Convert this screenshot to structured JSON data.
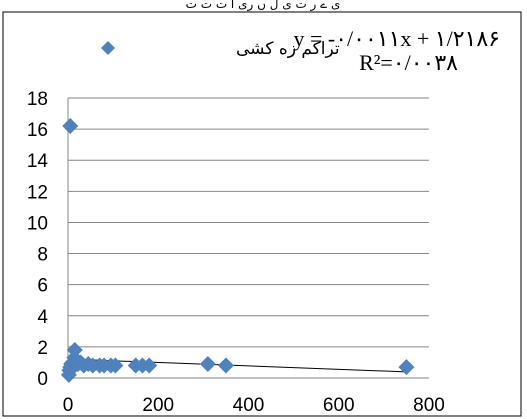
{
  "header_text": "ی ے ر ت ی ل ں ری ا ت ت ت",
  "chart_data": {
    "type": "scatter",
    "title": "",
    "xlabel": "",
    "ylabel": "",
    "xlim": [
      0,
      800
    ],
    "ylim": [
      0,
      18
    ],
    "x_ticks": [
      "0",
      "200",
      "400",
      "600",
      "800"
    ],
    "y_ticks": [
      "0",
      "2",
      "4",
      "6",
      "8",
      "10",
      "12",
      "14",
      "16",
      "18"
    ],
    "grid": "horizontal",
    "legend_position": "top-left",
    "series": [
      {
        "name": "تراکم زه کشی",
        "color": "#4f81bd",
        "marker": "diamond",
        "points": [
          {
            "x": 5,
            "y": 16.2
          },
          {
            "x": 2,
            "y": 0.2
          },
          {
            "x": 3,
            "y": 0.5
          },
          {
            "x": 5,
            "y": 0.7
          },
          {
            "x": 7,
            "y": 0.9
          },
          {
            "x": 8,
            "y": 0.6
          },
          {
            "x": 10,
            "y": 1.0
          },
          {
            "x": 12,
            "y": 0.8
          },
          {
            "x": 14,
            "y": 1.3
          },
          {
            "x": 15,
            "y": 1.8
          },
          {
            "x": 18,
            "y": 1.1
          },
          {
            "x": 22,
            "y": 0.9
          },
          {
            "x": 28,
            "y": 1.0
          },
          {
            "x": 35,
            "y": 0.8
          },
          {
            "x": 45,
            "y": 0.9
          },
          {
            "x": 55,
            "y": 0.8
          },
          {
            "x": 70,
            "y": 0.8
          },
          {
            "x": 80,
            "y": 0.8
          },
          {
            "x": 95,
            "y": 0.8
          },
          {
            "x": 105,
            "y": 0.8
          },
          {
            "x": 150,
            "y": 0.8
          },
          {
            "x": 165,
            "y": 0.8
          },
          {
            "x": 180,
            "y": 0.8
          },
          {
            "x": 310,
            "y": 0.9
          },
          {
            "x": 350,
            "y": 0.8
          },
          {
            "x": 750,
            "y": 0.7
          }
        ]
      }
    ],
    "trendline": {
      "type": "linear",
      "slope": -0.0011,
      "intercept": 1.2186,
      "x_range": [
        0,
        750
      ],
      "color": "#000000"
    },
    "annotations": {
      "equation": "y = -۰/۰۰۱۱x + ۱/۲۱۸۶",
      "r_squared": "R²=۰/۰۰۳۸"
    }
  }
}
